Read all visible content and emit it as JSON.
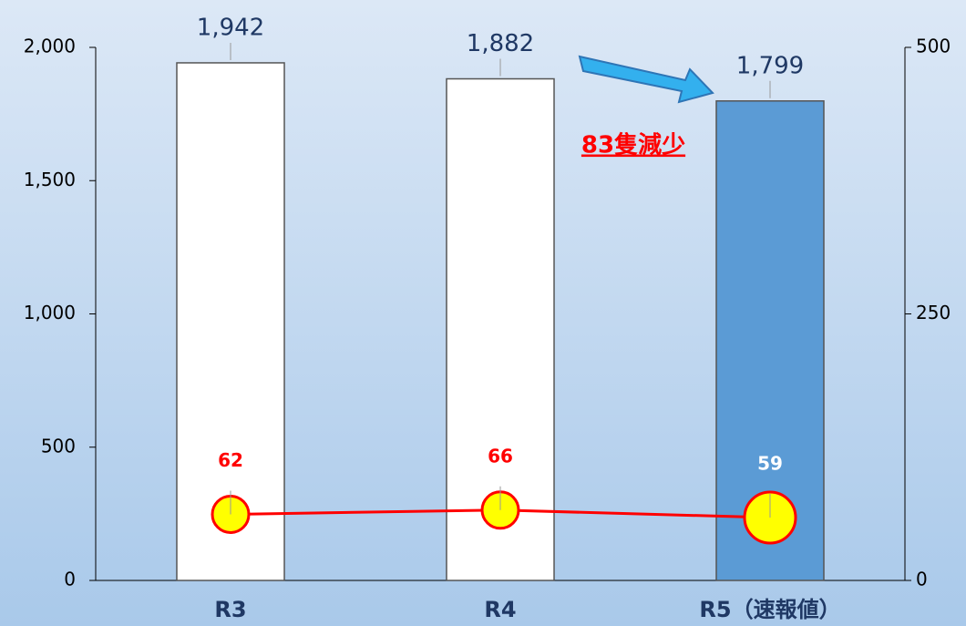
{
  "chart_data": {
    "type": "bar",
    "categories": [
      "R3",
      "R4",
      "R5（速報値）"
    ],
    "series": [
      {
        "type": "bar",
        "colors": [
          "#ffffff",
          "#ffffff",
          "#5b9bd5"
        ],
        "values": [
          1942,
          1882,
          1799
        ],
        "value_labels": [
          "1,942",
          "1,882",
          "1,799"
        ]
      },
      {
        "type": "line",
        "axis": "y2",
        "color": "#ff0000",
        "marker_color": "#ffff00",
        "label_colors": [
          "#ff0000",
          "#ff0000",
          "#ffffff"
        ],
        "values": [
          62,
          66,
          59
        ]
      }
    ],
    "ylim": [
      0,
      2000
    ],
    "yticks": [
      0,
      500,
      {
        "value": 1000,
        "label": "1,000"
      },
      {
        "value": 1500,
        "label": "1,500"
      },
      {
        "value": 2000,
        "label": "2,000"
      }
    ],
    "y2lim": [
      0,
      500
    ],
    "y2ticks": [
      0,
      250,
      500
    ],
    "annotation": "83隻減少"
  }
}
